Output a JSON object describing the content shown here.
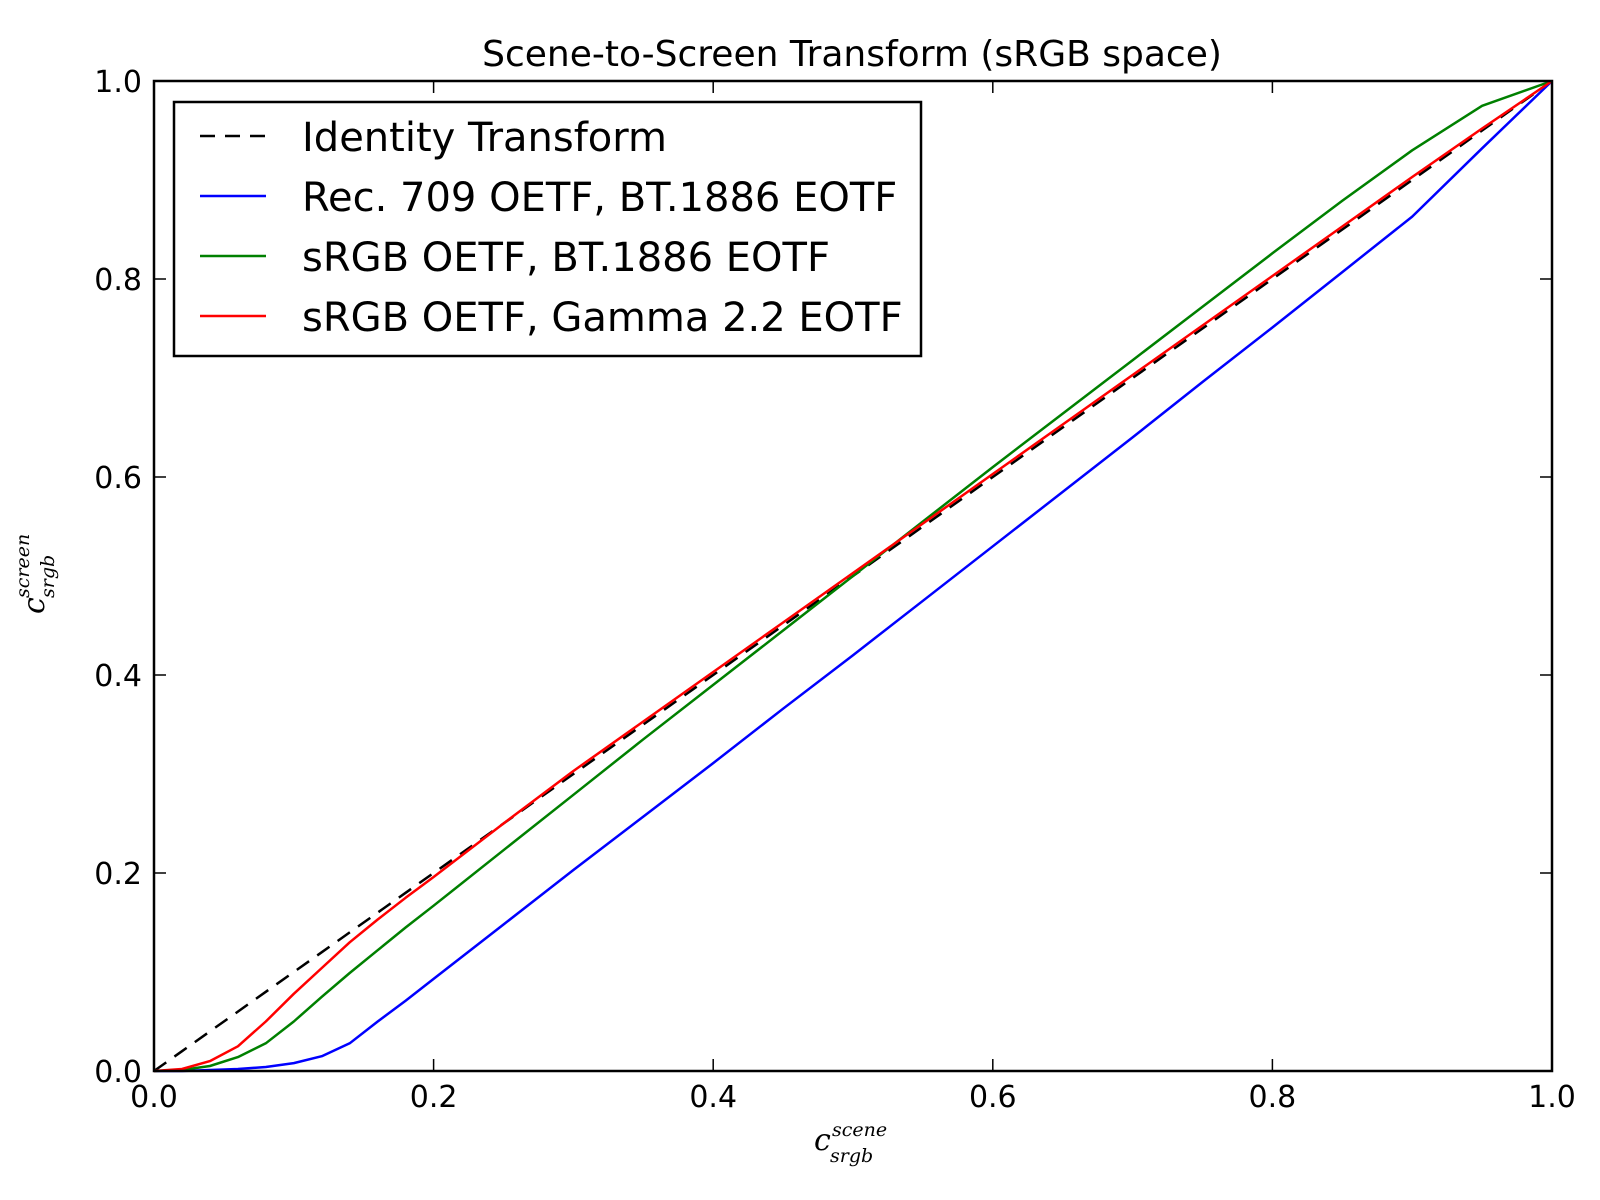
{
  "chart_data": {
    "type": "line",
    "title": "Scene-to-Screen Transform (sRGB space)",
    "xlabel": {
      "base": "c",
      "subscript": "srgb",
      "superscript": "scene"
    },
    "ylabel": {
      "base": "c",
      "subscript": "srgb",
      "superscript": "screen"
    },
    "xlim": [
      0.0,
      1.0
    ],
    "ylim": [
      0.0,
      1.0
    ],
    "xticks": [
      0.0,
      0.2,
      0.4,
      0.6,
      0.8,
      1.0
    ],
    "yticks": [
      0.0,
      0.2,
      0.4,
      0.6,
      0.8,
      1.0
    ],
    "xtick_labels": [
      "0.0",
      "0.2",
      "0.4",
      "0.6",
      "0.8",
      "1.0"
    ],
    "ytick_labels": [
      "0.0",
      "0.2",
      "0.4",
      "0.6",
      "0.8",
      "1.0"
    ],
    "grid": false,
    "legend_position": "top-left",
    "x": [
      0.0,
      0.02,
      0.04,
      0.06,
      0.08,
      0.1,
      0.12,
      0.14,
      0.16,
      0.18,
      0.2,
      0.25,
      0.3,
      0.35,
      0.4,
      0.45,
      0.5,
      0.55,
      0.6,
      0.65,
      0.7,
      0.75,
      0.8,
      0.85,
      0.9,
      0.95,
      1.0
    ],
    "series": [
      {
        "name": "Identity Transform",
        "color": "#000000",
        "dashed": true,
        "values": [
          0.0,
          0.02,
          0.04,
          0.06,
          0.08,
          0.1,
          0.12,
          0.14,
          0.16,
          0.18,
          0.2,
          0.25,
          0.3,
          0.35,
          0.4,
          0.45,
          0.5,
          0.55,
          0.6,
          0.65,
          0.7,
          0.75,
          0.8,
          0.85,
          0.9,
          0.95,
          1.0
        ]
      },
      {
        "name": "Rec. 709 OETF, BT.1886 EOTF",
        "color": "#0000ff",
        "dashed": false,
        "values": [
          0.0,
          0.0,
          0.001,
          0.002,
          0.004,
          0.008,
          0.015,
          0.028,
          0.05,
          0.071,
          0.093,
          0.148,
          0.203,
          0.257,
          0.311,
          0.366,
          0.42,
          0.475,
          0.53,
          0.585,
          0.64,
          0.696,
          0.751,
          0.807,
          0.863,
          0.932,
          1.0
        ]
      },
      {
        "name": "sRGB OETF, BT.1886 EOTF",
        "color": "#008000",
        "dashed": false,
        "values": [
          0.0,
          0.001,
          0.005,
          0.014,
          0.028,
          0.05,
          0.075,
          0.099,
          0.122,
          0.145,
          0.167,
          0.223,
          0.279,
          0.335,
          0.39,
          0.445,
          0.5,
          0.555,
          0.61,
          0.664,
          0.718,
          0.772,
          0.826,
          0.879,
          0.93,
          0.975,
          1.0
        ]
      },
      {
        "name": "sRGB OETF, Gamma 2.2 EOTF",
        "color": "#ff0000",
        "dashed": false,
        "values": [
          0.0,
          0.002,
          0.01,
          0.025,
          0.05,
          0.078,
          0.104,
          0.13,
          0.153,
          0.175,
          0.196,
          0.25,
          0.303,
          0.353,
          0.403,
          0.453,
          0.503,
          0.553,
          0.603,
          0.653,
          0.703,
          0.753,
          0.803,
          0.853,
          0.903,
          0.952,
          1.0
        ]
      }
    ]
  }
}
